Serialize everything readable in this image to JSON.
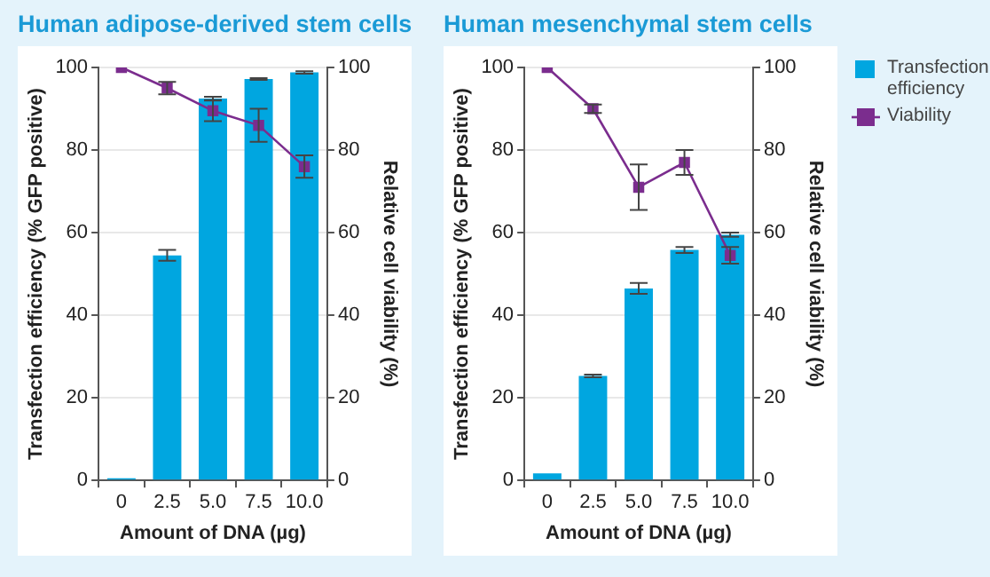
{
  "chart_data": [
    {
      "type": "bar",
      "title": "Human adipose-derived stem cells",
      "xlabel": "Amount of DNA (µg)",
      "ylabel": "Transfection efficiency (% GFP positive)",
      "y2label": "Relative cell viability (%)",
      "categories": [
        "0",
        "2.5",
        "5.0",
        "7.5",
        "10.0"
      ],
      "series": [
        {
          "color": "#00a6e0",
          "values": [
            0.5,
            54.5,
            92.5,
            97.2,
            98.8
          ],
          "errors": [
            null,
            1.3,
            0.4,
            0.2,
            0.3
          ]
        },
        {
          "type": "line",
          "color": "#7b2d8e",
          "values": [
            100,
            95,
            89.5,
            86,
            76
          ],
          "errors": [
            null,
            1.5,
            2.5,
            4,
            2.7
          ]
        }
      ],
      "ylim": [
        0,
        100
      ],
      "yticks": [
        0,
        20,
        40,
        60,
        80,
        100
      ],
      "y2lim": [
        0,
        100
      ],
      "y2ticks": [
        0,
        20,
        40,
        60,
        80,
        100
      ],
      "grid": "y",
      "legend": false,
      "marker": "square",
      "line_style": "solid"
    },
    {
      "type": "bar",
      "title": "Human mesenchymal stem cells",
      "xlabel": "Amount of DNA (µg)",
      "ylabel": "Transfection efficiency (% GFP positive)",
      "y2label": "Relative cell viability (%)",
      "categories": [
        "0",
        "2.5",
        "5.0",
        "7.5",
        "10.0"
      ],
      "series": [
        {
          "name": "Transfection efficiency",
          "color": "#00a6e0",
          "values": [
            1.7,
            25.3,
            46.5,
            55.8,
            59.5
          ],
          "errors": [
            null,
            0.3,
            1.3,
            0.7,
            0.5
          ]
        },
        {
          "name": "Viability",
          "type": "line",
          "color": "#7b2d8e",
          "values": [
            100,
            90,
            71,
            77,
            54.5
          ],
          "errors": [
            null,
            1,
            5.5,
            3,
            2
          ]
        }
      ],
      "ylim": [
        0,
        100
      ],
      "yticks": [
        0,
        20,
        40,
        60,
        80,
        100
      ],
      "y2lim": [
        0,
        100
      ],
      "y2ticks": [
        0,
        20,
        40,
        60,
        80,
        100
      ],
      "grid": "y",
      "legend": "right",
      "marker": "square",
      "line_style": "solid"
    }
  ]
}
